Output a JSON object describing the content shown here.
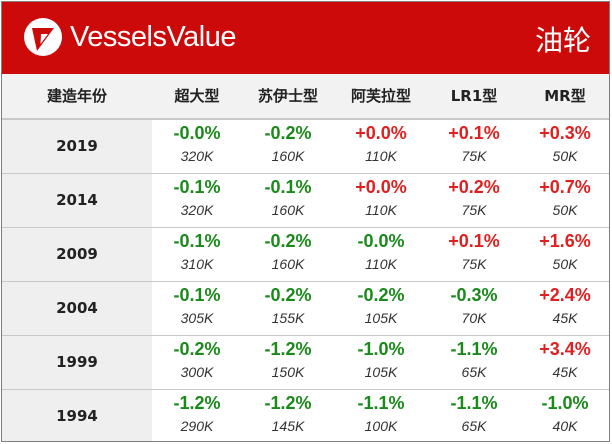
{
  "header": {
    "brand": "VesselsValue",
    "vessel_type": "油轮",
    "colors": {
      "brand_red": "#cc0a0a",
      "positive_red": "#e02020",
      "negative_green": "#1a8a1a"
    },
    "logo_icon": "vesselsvalue-logo-icon"
  },
  "columns": [
    "建造年份",
    "超大型",
    "苏伊士型",
    "阿芙拉型",
    "LR1型",
    "MR型"
  ],
  "rows": [
    {
      "year": "2019",
      "cells": [
        {
          "change": "-0.0%",
          "value": "320K",
          "trend": "down"
        },
        {
          "change": "-0.2%",
          "value": "160K",
          "trend": "down"
        },
        {
          "change": "+0.0%",
          "value": "110K",
          "trend": "up"
        },
        {
          "change": "+0.1%",
          "value": "75K",
          "trend": "up"
        },
        {
          "change": "+0.3%",
          "value": "50K",
          "trend": "up"
        }
      ]
    },
    {
      "year": "2014",
      "cells": [
        {
          "change": "-0.1%",
          "value": "320K",
          "trend": "down"
        },
        {
          "change": "-0.1%",
          "value": "160K",
          "trend": "down"
        },
        {
          "change": "+0.0%",
          "value": "110K",
          "trend": "up"
        },
        {
          "change": "+0.2%",
          "value": "75K",
          "trend": "up"
        },
        {
          "change": "+0.7%",
          "value": "50K",
          "trend": "up"
        }
      ]
    },
    {
      "year": "2009",
      "cells": [
        {
          "change": "-0.1%",
          "value": "310K",
          "trend": "down"
        },
        {
          "change": "-0.2%",
          "value": "160K",
          "trend": "down"
        },
        {
          "change": "-0.0%",
          "value": "110K",
          "trend": "down"
        },
        {
          "change": "+0.1%",
          "value": "75K",
          "trend": "up"
        },
        {
          "change": "+1.6%",
          "value": "50K",
          "trend": "up"
        }
      ]
    },
    {
      "year": "2004",
      "cells": [
        {
          "change": "-0.1%",
          "value": "305K",
          "trend": "down"
        },
        {
          "change": "-0.2%",
          "value": "155K",
          "trend": "down"
        },
        {
          "change": "-0.2%",
          "value": "105K",
          "trend": "down"
        },
        {
          "change": "-0.3%",
          "value": "70K",
          "trend": "down"
        },
        {
          "change": "+2.4%",
          "value": "45K",
          "trend": "up"
        }
      ]
    },
    {
      "year": "1999",
      "cells": [
        {
          "change": "-0.2%",
          "value": "300K",
          "trend": "down"
        },
        {
          "change": "-1.2%",
          "value": "150K",
          "trend": "down"
        },
        {
          "change": "-1.0%",
          "value": "105K",
          "trend": "down"
        },
        {
          "change": "-1.1%",
          "value": "65K",
          "trend": "down"
        },
        {
          "change": "+3.4%",
          "value": "45K",
          "trend": "up"
        }
      ]
    },
    {
      "year": "1994",
      "cells": [
        {
          "change": "-1.2%",
          "value": "290K",
          "trend": "down"
        },
        {
          "change": "-1.2%",
          "value": "145K",
          "trend": "down"
        },
        {
          "change": "-1.1%",
          "value": "100K",
          "trend": "down"
        },
        {
          "change": "-1.1%",
          "value": "65K",
          "trend": "down"
        },
        {
          "change": "-1.0%",
          "value": "40K",
          "trend": "down"
        }
      ]
    }
  ]
}
